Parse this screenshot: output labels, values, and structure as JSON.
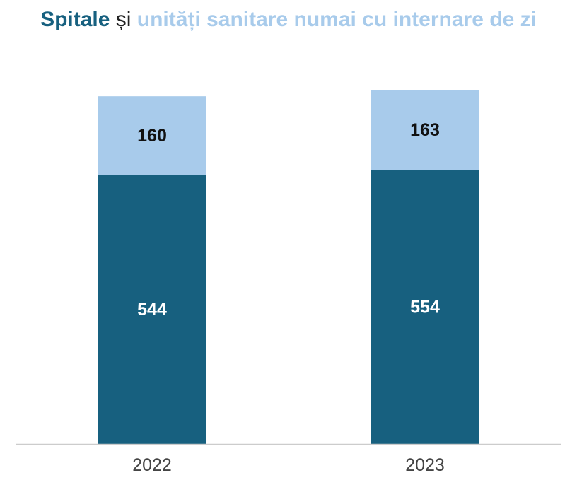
{
  "title": {
    "part1": "Spitale",
    "part2": " și ",
    "part3": "unități sanitare numai cu internare de zi"
  },
  "colors": {
    "spitale": "#17607f",
    "unitati": "#a8cbeb",
    "title_dark": "#17607f",
    "title_light": "#a8cbeb",
    "axis": "#cccccc"
  },
  "chart_data": {
    "type": "bar",
    "stacked": true,
    "categories": [
      "2022",
      "2023"
    ],
    "series": [
      {
        "values": [
          544,
          554
        ],
        "color": "#17607f",
        "label_color": "#ffffff"
      },
      {
        "values": [
          160,
          163
        ],
        "color": "#a8cbeb",
        "label_color": "#111111"
      }
    ],
    "title": "Spitale și unități sanitare numai cu internare de zi",
    "xlabel": "",
    "ylabel": "",
    "ylim": [
      0,
      720
    ],
    "grid": false,
    "legend": "none"
  }
}
